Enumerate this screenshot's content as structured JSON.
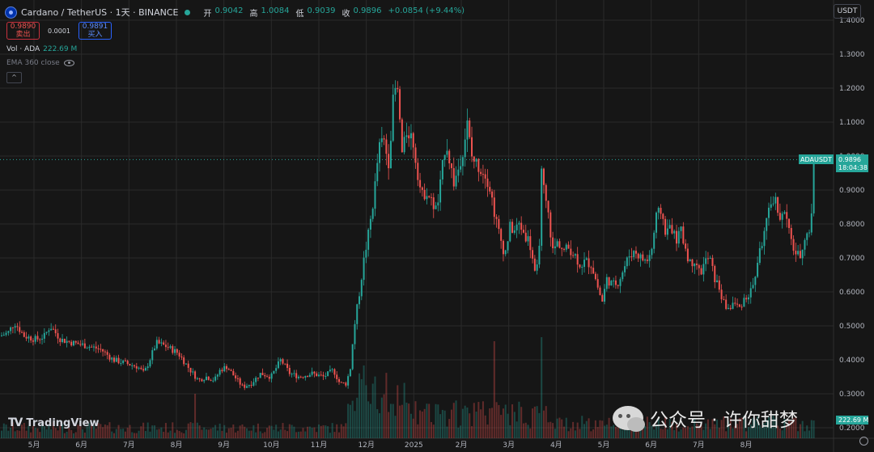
{
  "header": {
    "symbol": "Cardano / TetherUS · 1天 · BINANCE",
    "open_label": "开",
    "open": "0.9042",
    "high_label": "高",
    "high": "1.0084",
    "low_label": "低",
    "low": "0.9039",
    "close_label": "收",
    "close": "0.9896",
    "change": "+0.0854 (+9.44%)"
  },
  "trade": {
    "sell_price": "0.9890",
    "sell_label": "卖出",
    "spread": "0.0001",
    "buy_price": "0.9891",
    "buy_label": "买入"
  },
  "indicators": {
    "vol_label": "Vol · ADA",
    "vol_value": "222.69 M",
    "ema_label": "EMA 360 close"
  },
  "currency": "USDT",
  "brand": "TradingView",
  "watermark": "公众号 · 许你甜梦",
  "colors": {
    "up": "#26a69a",
    "down": "#ef5350",
    "background": "#161616",
    "grid": "#2a2a2a",
    "axis_text": "#b2b5be"
  },
  "icons": [
    "cardano-logo-icon",
    "live-dot-icon",
    "eye-icon",
    "chevron-up-icon",
    "settings-icon",
    "tradingview-logo-icon",
    "wechat-icon"
  ],
  "chart_data": {
    "type": "candlestick",
    "symbol_tag": "ADAUSDT",
    "last_price": "0.9896",
    "countdown": "18:04:38",
    "volume_tag": "222.69 M",
    "y_ticks": [
      "0.2000",
      "0.3000",
      "0.4000",
      "0.5000",
      "0.6000",
      "0.7000",
      "0.8000",
      "0.9000",
      "1.0000",
      "1.1000",
      "1.2000",
      "1.3000",
      "1.4000"
    ],
    "ylim": [
      0.2,
      1.4
    ],
    "x_ticks": [
      "5月",
      "6月",
      "7月",
      "8月",
      "9月",
      "10月",
      "11月",
      "12月",
      "2025",
      "2月",
      "3月",
      "4月",
      "5月",
      "6月",
      "7月",
      "8月"
    ],
    "price_path": [
      [
        0,
        0.47
      ],
      [
        10,
        0.48
      ],
      [
        18,
        0.51
      ],
      [
        30,
        0.47
      ],
      [
        45,
        0.46
      ],
      [
        55,
        0.47
      ],
      [
        62,
        0.5
      ],
      [
        75,
        0.46
      ],
      [
        90,
        0.45
      ],
      [
        110,
        0.44
      ],
      [
        125,
        0.43
      ],
      [
        140,
        0.4
      ],
      [
        155,
        0.39
      ],
      [
        170,
        0.38
      ],
      [
        178,
        0.36
      ],
      [
        185,
        0.4
      ],
      [
        193,
        0.45
      ],
      [
        205,
        0.44
      ],
      [
        220,
        0.42
      ],
      [
        235,
        0.37
      ],
      [
        245,
        0.34
      ],
      [
        255,
        0.35
      ],
      [
        265,
        0.34
      ],
      [
        272,
        0.37
      ],
      [
        280,
        0.38
      ],
      [
        290,
        0.35
      ],
      [
        300,
        0.32
      ],
      [
        310,
        0.33
      ],
      [
        322,
        0.36
      ],
      [
        335,
        0.35
      ],
      [
        347,
        0.4
      ],
      [
        358,
        0.36
      ],
      [
        370,
        0.35
      ],
      [
        385,
        0.36
      ],
      [
        400,
        0.35
      ],
      [
        412,
        0.37
      ],
      [
        420,
        0.33
      ],
      [
        428,
        0.33
      ],
      [
        433,
        0.38
      ],
      [
        438,
        0.5
      ],
      [
        443,
        0.58
      ],
      [
        450,
        0.7
      ],
      [
        456,
        0.78
      ],
      [
        462,
        0.88
      ],
      [
        468,
        1.02
      ],
      [
        474,
        1.05
      ],
      [
        480,
        0.98
      ],
      [
        484,
        1.1
      ],
      [
        487,
        1.2
      ],
      [
        492,
        1.18
      ],
      [
        497,
        1.0
      ],
      [
        503,
        1.08
      ],
      [
        510,
        1.05
      ],
      [
        515,
        0.97
      ],
      [
        521,
        0.88
      ],
      [
        527,
        0.9
      ],
      [
        534,
        0.86
      ],
      [
        540,
        0.84
      ],
      [
        546,
        0.95
      ],
      [
        551,
        1.05
      ],
      [
        556,
        0.98
      ],
      [
        561,
        0.92
      ],
      [
        566,
        0.96
      ],
      [
        572,
        1.02
      ],
      [
        578,
        1.1
      ],
      [
        582,
        1.0
      ],
      [
        588,
        0.98
      ],
      [
        595,
        0.96
      ],
      [
        600,
        0.95
      ],
      [
        606,
        0.9
      ],
      [
        612,
        0.82
      ],
      [
        618,
        0.76
      ],
      [
        624,
        0.71
      ],
      [
        630,
        0.79
      ],
      [
        636,
        0.78
      ],
      [
        642,
        0.8
      ],
      [
        648,
        0.77
      ],
      [
        654,
        0.75
      ],
      [
        658,
        0.7
      ],
      [
        662,
        0.63
      ],
      [
        666,
        0.72
      ],
      [
        669,
        0.95
      ],
      [
        673,
        0.88
      ],
      [
        678,
        0.82
      ],
      [
        683,
        0.72
      ],
      [
        690,
        0.75
      ],
      [
        696,
        0.72
      ],
      [
        703,
        0.73
      ],
      [
        710,
        0.71
      ],
      [
        717,
        0.68
      ],
      [
        724,
        0.69
      ],
      [
        731,
        0.68
      ],
      [
        738,
        0.62
      ],
      [
        744,
        0.57
      ],
      [
        750,
        0.64
      ],
      [
        757,
        0.62
      ],
      [
        764,
        0.63
      ],
      [
        771,
        0.67
      ],
      [
        778,
        0.71
      ],
      [
        785,
        0.72
      ],
      [
        792,
        0.7
      ],
      [
        799,
        0.69
      ],
      [
        805,
        0.72
      ],
      [
        811,
        0.82
      ],
      [
        817,
        0.84
      ],
      [
        823,
        0.77
      ],
      [
        829,
        0.8
      ],
      [
        835,
        0.75
      ],
      [
        841,
        0.78
      ],
      [
        847,
        0.73
      ],
      [
        853,
        0.68
      ],
      [
        859,
        0.7
      ],
      [
        865,
        0.65
      ],
      [
        871,
        0.69
      ],
      [
        877,
        0.7
      ],
      [
        883,
        0.64
      ],
      [
        889,
        0.61
      ],
      [
        895,
        0.56
      ],
      [
        901,
        0.55
      ],
      [
        907,
        0.57
      ],
      [
        913,
        0.55
      ],
      [
        919,
        0.58
      ],
      [
        925,
        0.59
      ],
      [
        931,
        0.62
      ],
      [
        937,
        0.7
      ],
      [
        943,
        0.76
      ],
      [
        949,
        0.82
      ],
      [
        955,
        0.88
      ],
      [
        960,
        0.86
      ],
      [
        965,
        0.81
      ],
      [
        970,
        0.84
      ],
      [
        976,
        0.76
      ],
      [
        982,
        0.72
      ],
      [
        988,
        0.7
      ],
      [
        994,
        0.76
      ],
      [
        1000,
        0.78
      ],
      [
        1005,
        0.86
      ],
      [
        1009,
        0.99
      ]
    ]
  }
}
